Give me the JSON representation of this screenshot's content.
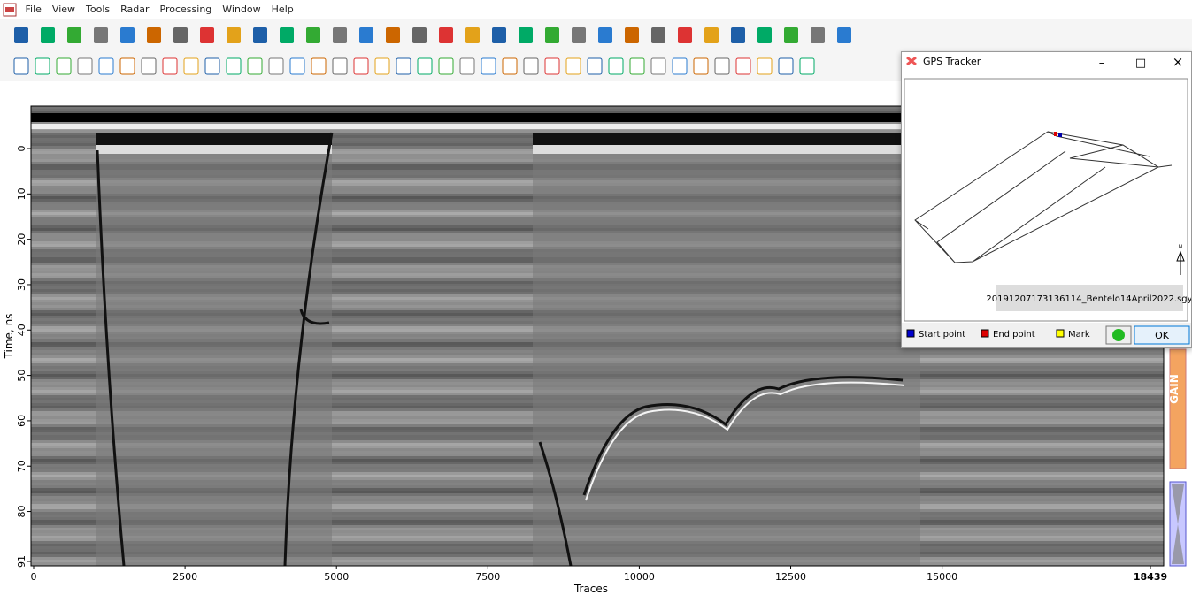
{
  "app": {
    "menu": [
      "File",
      "View",
      "Tools",
      "Radar",
      "Processing",
      "Window",
      "Help"
    ]
  },
  "radargram": {
    "y_label": "Time, ns",
    "x_label": "Traces",
    "yticks": [
      0,
      10,
      20,
      30,
      40,
      50,
      60,
      70,
      80,
      91
    ],
    "xticks": [
      0,
      2500,
      5000,
      7500,
      10000,
      12500,
      15000,
      18439
    ]
  },
  "side_panel": {
    "gain": "GAIN"
  },
  "gps_tracker": {
    "title": "GPS Tracker",
    "controls": [
      "–",
      "□",
      "×"
    ],
    "file": "20191207173136114_Bentelo14April2022.sgy",
    "north": "N",
    "legend": [
      "Start point",
      "End point",
      "Mark"
    ],
    "ok": "OK"
  }
}
